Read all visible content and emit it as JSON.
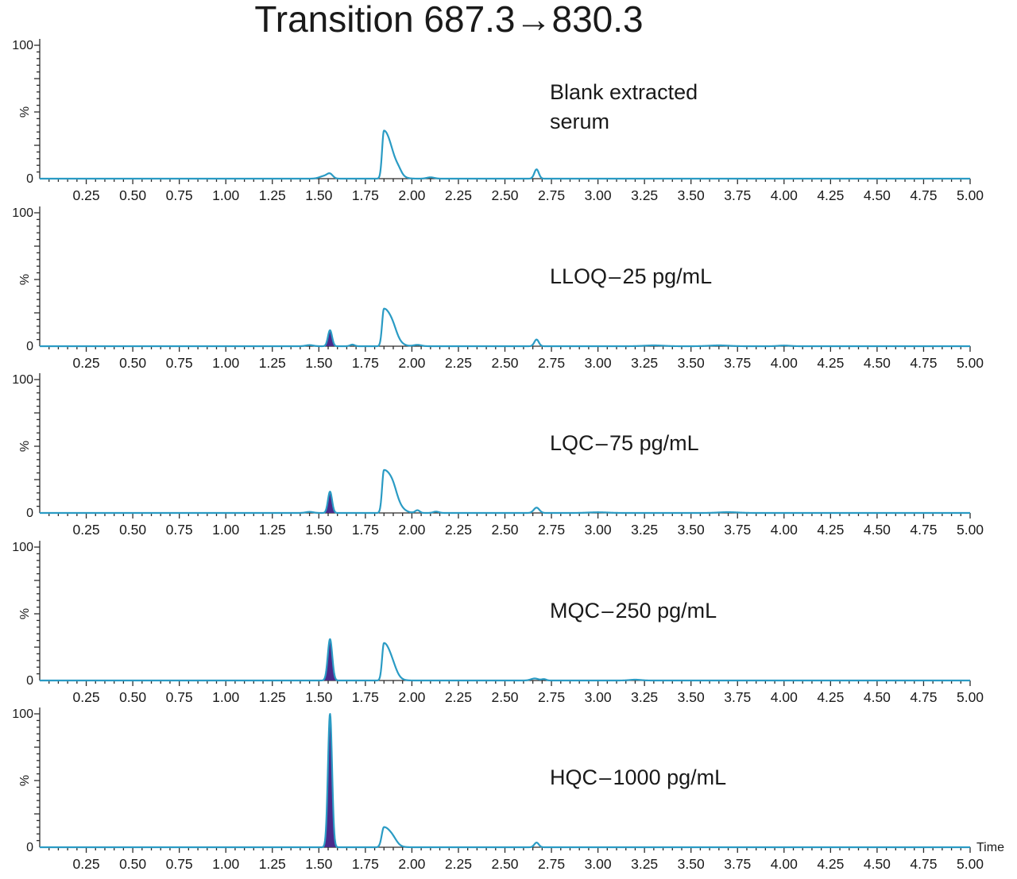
{
  "chart_data": {
    "type": "line",
    "title": "Transition 687.3→830.3",
    "xlabel": "Time",
    "ylabel": "%",
    "xlim": [
      0,
      5.0
    ],
    "ylim": [
      0,
      100
    ],
    "x_ticks": [
      "0.25",
      "0.50",
      "0.75",
      "1.00",
      "1.25",
      "1.50",
      "1.75",
      "2.00",
      "2.25",
      "2.50",
      "2.75",
      "3.00",
      "3.25",
      "3.50",
      "3.75",
      "4.00",
      "4.25",
      "4.50",
      "4.75",
      "5.00"
    ],
    "y_ticks": [
      "0",
      "%",
      "100"
    ],
    "colors": {
      "trace": "#2a9bc4",
      "integrated_fill": "#4a2a8a",
      "axis": "#2b2b2b"
    },
    "panels": [
      {
        "name": "Blank extracted serum",
        "label_lines": [
          "Blank extracted",
          "serum"
        ],
        "integrated_peak": null,
        "peaks": [
          {
            "rt": 1.53,
            "height": 2,
            "width": 0.025
          },
          {
            "rt": 1.56,
            "height": 3,
            "width": 0.015
          },
          {
            "rt": 1.85,
            "height": 36,
            "width": 0.01,
            "tail": 0.045
          },
          {
            "rt": 1.93,
            "height": 2,
            "width": 0.015
          },
          {
            "rt": 2.1,
            "height": 1,
            "width": 0.02
          },
          {
            "rt": 2.67,
            "height": 7,
            "width": 0.012
          }
        ]
      },
      {
        "name": "LLOQ – 25 pg/mL",
        "label_lines": [
          "LLOQ – 25 pg/mL"
        ],
        "integrated_peak": {
          "rt": 1.56,
          "height": 12
        },
        "peaks": [
          {
            "rt": 1.45,
            "height": 0.8,
            "width": 0.02
          },
          {
            "rt": 1.56,
            "height": 12,
            "width": 0.011
          },
          {
            "rt": 1.68,
            "height": 1.2,
            "width": 0.012
          },
          {
            "rt": 1.85,
            "height": 28,
            "width": 0.01,
            "tail": 0.045
          },
          {
            "rt": 1.9,
            "height": 3,
            "width": 0.02
          },
          {
            "rt": 2.03,
            "height": 1,
            "width": 0.02
          },
          {
            "rt": 2.67,
            "height": 5,
            "width": 0.012
          },
          {
            "rt": 3.3,
            "height": 0.6,
            "width": 0.05
          },
          {
            "rt": 3.65,
            "height": 0.6,
            "width": 0.05
          },
          {
            "rt": 4.0,
            "height": 0.5,
            "width": 0.03
          }
        ]
      },
      {
        "name": "LQC – 75 pg/mL",
        "label_lines": [
          "LQC – 75 pg/mL"
        ],
        "integrated_peak": {
          "rt": 1.56,
          "height": 16
        },
        "peaks": [
          {
            "rt": 1.45,
            "height": 0.8,
            "width": 0.02
          },
          {
            "rt": 1.56,
            "height": 16,
            "width": 0.011
          },
          {
            "rt": 1.85,
            "height": 32,
            "width": 0.01,
            "tail": 0.05
          },
          {
            "rt": 1.9,
            "height": 4,
            "width": 0.02
          },
          {
            "rt": 2.03,
            "height": 2,
            "width": 0.012
          },
          {
            "rt": 2.13,
            "height": 1,
            "width": 0.015
          },
          {
            "rt": 2.67,
            "height": 4,
            "width": 0.015
          },
          {
            "rt": 3.0,
            "height": 0.5,
            "width": 0.05
          },
          {
            "rt": 3.7,
            "height": 0.6,
            "width": 0.05
          }
        ]
      },
      {
        "name": "MQC – 250 pg/mL",
        "label_lines": [
          "MQC – 250 pg/mL"
        ],
        "integrated_peak": {
          "rt": 1.56,
          "height": 31
        },
        "peaks": [
          {
            "rt": 1.56,
            "height": 31,
            "width": 0.012
          },
          {
            "rt": 1.85,
            "height": 28,
            "width": 0.01,
            "tail": 0.04
          },
          {
            "rt": 1.9,
            "height": 2,
            "width": 0.02
          },
          {
            "rt": 2.66,
            "height": 1.5,
            "width": 0.02
          },
          {
            "rt": 2.71,
            "height": 1,
            "width": 0.012
          },
          {
            "rt": 3.2,
            "height": 0.6,
            "width": 0.03
          }
        ]
      },
      {
        "name": "HQC – 1000 pg/mL",
        "label_lines": [
          "HQC – 1000 pg/mL"
        ],
        "integrated_peak": {
          "rt": 1.56,
          "height": 100
        },
        "peaks": [
          {
            "rt": 1.56,
            "height": 100,
            "width": 0.011
          },
          {
            "rt": 1.85,
            "height": 15,
            "width": 0.012,
            "tail": 0.04
          },
          {
            "rt": 1.9,
            "height": 2,
            "width": 0.02
          },
          {
            "rt": 2.67,
            "height": 3.5,
            "width": 0.012
          }
        ]
      }
    ]
  }
}
